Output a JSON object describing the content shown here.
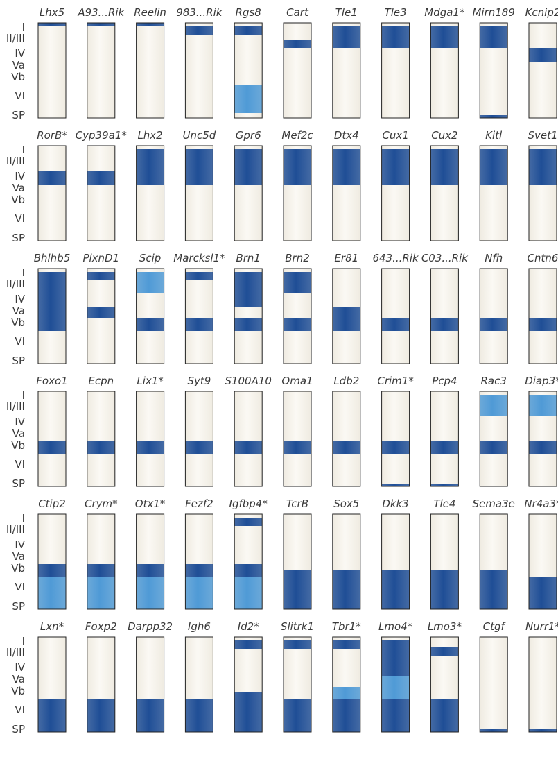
{
  "colors": {
    "column_fill": "#f7f4ec",
    "column_stroke": "#222222",
    "strong": "#1f4e96",
    "weak": "#4f9ad6",
    "text": "#3a3a3a"
  },
  "layer_labels": [
    "I",
    "II/III",
    "IV",
    "Va",
    "Vb",
    "VI",
    "SP"
  ],
  "rows": [
    {
      "genes": [
        {
          "name": "Lhx5",
          "bands": [
            {
              "from": "I",
              "to": "I",
              "level": "strong"
            }
          ]
        },
        {
          "name": "A93...Rik",
          "bands": [
            {
              "from": "I",
              "to": "I",
              "level": "strong"
            }
          ]
        },
        {
          "name": "Reelin",
          "bands": [
            {
              "from": "I",
              "to": "I",
              "level": "strong"
            }
          ]
        },
        {
          "name": "983...Rik",
          "bands": [
            {
              "from": "II/III",
              "to": "II/III",
              "level": "strong",
              "part": "upper"
            }
          ]
        },
        {
          "name": "Rgs8",
          "bands": [
            {
              "from": "II/III",
              "to": "II/III",
              "level": "strong",
              "part": "upper"
            },
            {
              "from": "VI",
              "to": "VI",
              "level": "weak"
            }
          ]
        },
        {
          "name": "Cart",
          "bands": [
            {
              "from": "II/III",
              "to": "II/III",
              "level": "strong",
              "part": "lower"
            }
          ]
        },
        {
          "name": "Tle1",
          "bands": [
            {
              "from": "II/III",
              "to": "II/III",
              "level": "strong"
            }
          ]
        },
        {
          "name": "Tle3",
          "bands": [
            {
              "from": "II/III",
              "to": "II/III",
              "level": "strong"
            }
          ]
        },
        {
          "name": "Mdga1*",
          "bands": [
            {
              "from": "II/III",
              "to": "II/III",
              "level": "strong"
            }
          ]
        },
        {
          "name": "Mirn189",
          "bands": [
            {
              "from": "II/III",
              "to": "II/III",
              "level": "strong"
            },
            {
              "from": "SP",
              "to": "SP",
              "level": "strong",
              "part": "bottom"
            }
          ]
        },
        {
          "name": "Kcnip2",
          "bands": [
            {
              "from": "IV",
              "to": "IV",
              "level": "strong"
            }
          ]
        }
      ]
    },
    {
      "genes": [
        {
          "name": "RorB*",
          "bands": [
            {
              "from": "IV",
              "to": "IV",
              "level": "strong"
            }
          ]
        },
        {
          "name": "Cyp39a1*",
          "bands": [
            {
              "from": "IV",
              "to": "IV",
              "level": "strong"
            }
          ]
        },
        {
          "name": "Lhx2",
          "bands": [
            {
              "from": "II/III",
              "to": "IV",
              "level": "strong"
            }
          ]
        },
        {
          "name": "Unc5d",
          "bands": [
            {
              "from": "II/III",
              "to": "IV",
              "level": "strong"
            }
          ]
        },
        {
          "name": "Gpr6",
          "bands": [
            {
              "from": "II/III",
              "to": "IV",
              "level": "strong"
            }
          ]
        },
        {
          "name": "Mef2c",
          "bands": [
            {
              "from": "II/III",
              "to": "IV",
              "level": "strong"
            }
          ]
        },
        {
          "name": "Dtx4",
          "bands": [
            {
              "from": "II/III",
              "to": "IV",
              "level": "strong"
            }
          ]
        },
        {
          "name": "Cux1",
          "bands": [
            {
              "from": "II/III",
              "to": "IV",
              "level": "strong"
            }
          ]
        },
        {
          "name": "Cux2",
          "bands": [
            {
              "from": "II/III",
              "to": "IV",
              "level": "strong"
            }
          ]
        },
        {
          "name": "Kitl",
          "bands": [
            {
              "from": "II/III",
              "to": "IV",
              "level": "strong"
            }
          ]
        },
        {
          "name": "Svet1",
          "bands": [
            {
              "from": "II/III",
              "to": "IV",
              "level": "strong"
            }
          ]
        }
      ]
    },
    {
      "genes": [
        {
          "name": "Bhlhb5",
          "bands": [
            {
              "from": "II/III",
              "to": "Vb",
              "level": "strong"
            }
          ]
        },
        {
          "name": "PlxnD1",
          "bands": [
            {
              "from": "II/III",
              "to": "II/III",
              "level": "strong",
              "part": "upper"
            },
            {
              "from": "Va",
              "to": "Va",
              "level": "strong"
            }
          ]
        },
        {
          "name": "Scip",
          "bands": [
            {
              "from": "II/III",
              "to": "II/III",
              "level": "weak"
            },
            {
              "from": "Vb",
              "to": "Vb",
              "level": "strong"
            }
          ]
        },
        {
          "name": "Marcksl1*",
          "bands": [
            {
              "from": "II/III",
              "to": "II/III",
              "level": "strong",
              "part": "upper"
            },
            {
              "from": "Vb",
              "to": "Vb",
              "level": "strong"
            }
          ]
        },
        {
          "name": "Brn1",
          "bands": [
            {
              "from": "II/III",
              "to": "IV",
              "level": "strong"
            },
            {
              "from": "Vb",
              "to": "Vb",
              "level": "strong"
            }
          ]
        },
        {
          "name": "Brn2",
          "bands": [
            {
              "from": "II/III",
              "to": "II/III",
              "level": "strong"
            },
            {
              "from": "Vb",
              "to": "Vb",
              "level": "strong"
            }
          ]
        },
        {
          "name": "Er81",
          "bands": [
            {
              "from": "Va",
              "to": "Vb",
              "level": "strong"
            }
          ]
        },
        {
          "name": "643...Rik",
          "bands": [
            {
              "from": "Vb",
              "to": "Vb",
              "level": "strong"
            }
          ]
        },
        {
          "name": "C03...Rik",
          "bands": [
            {
              "from": "Vb",
              "to": "Vb",
              "level": "strong"
            }
          ]
        },
        {
          "name": "Nfh",
          "bands": [
            {
              "from": "Vb",
              "to": "Vb",
              "level": "strong"
            }
          ]
        },
        {
          "name": "Cntn6",
          "bands": [
            {
              "from": "Vb",
              "to": "Vb",
              "level": "strong"
            }
          ]
        }
      ]
    },
    {
      "genes": [
        {
          "name": "Foxo1",
          "bands": [
            {
              "from": "Vb",
              "to": "Vb",
              "level": "strong"
            }
          ]
        },
        {
          "name": "Ecpn",
          "bands": [
            {
              "from": "Vb",
              "to": "Vb",
              "level": "strong"
            }
          ]
        },
        {
          "name": "Lix1*",
          "bands": [
            {
              "from": "Vb",
              "to": "Vb",
              "level": "strong"
            }
          ]
        },
        {
          "name": "Syt9",
          "bands": [
            {
              "from": "Vb",
              "to": "Vb",
              "level": "strong"
            }
          ]
        },
        {
          "name": "S100A10",
          "bands": [
            {
              "from": "Vb",
              "to": "Vb",
              "level": "strong"
            }
          ]
        },
        {
          "name": "Oma1",
          "bands": [
            {
              "from": "Vb",
              "to": "Vb",
              "level": "strong"
            }
          ]
        },
        {
          "name": "Ldb2",
          "bands": [
            {
              "from": "Vb",
              "to": "Vb",
              "level": "strong"
            }
          ]
        },
        {
          "name": "Crim1*",
          "bands": [
            {
              "from": "Vb",
              "to": "Vb",
              "level": "strong"
            },
            {
              "from": "SP",
              "to": "SP",
              "level": "strong",
              "part": "bottom"
            }
          ]
        },
        {
          "name": "Pcp4",
          "bands": [
            {
              "from": "Vb",
              "to": "Vb",
              "level": "strong"
            },
            {
              "from": "SP",
              "to": "SP",
              "level": "strong",
              "part": "bottom"
            }
          ]
        },
        {
          "name": "Rac3",
          "bands": [
            {
              "from": "II/III",
              "to": "II/III",
              "level": "weak"
            },
            {
              "from": "Vb",
              "to": "Vb",
              "level": "strong"
            }
          ]
        },
        {
          "name": "Diap3*",
          "bands": [
            {
              "from": "II/III",
              "to": "II/III",
              "level": "weak"
            },
            {
              "from": "Vb",
              "to": "Vb",
              "level": "strong"
            }
          ]
        }
      ]
    },
    {
      "genes": [
        {
          "name": "Ctip2",
          "bands": [
            {
              "from": "Vb",
              "to": "Vb",
              "level": "strong"
            },
            {
              "from": "VI",
              "to": "SP",
              "level": "weak"
            }
          ]
        },
        {
          "name": "Crym*",
          "bands": [
            {
              "from": "Vb",
              "to": "Vb",
              "level": "strong"
            },
            {
              "from": "VI",
              "to": "SP",
              "level": "weak"
            }
          ]
        },
        {
          "name": "Otx1*",
          "bands": [
            {
              "from": "Vb",
              "to": "Vb",
              "level": "strong"
            },
            {
              "from": "VI",
              "to": "SP",
              "level": "weak"
            }
          ]
        },
        {
          "name": "Fezf2",
          "bands": [
            {
              "from": "Vb",
              "to": "Vb",
              "level": "strong"
            },
            {
              "from": "VI",
              "to": "SP",
              "level": "weak"
            }
          ]
        },
        {
          "name": "Igfbp4*",
          "bands": [
            {
              "from": "II/III",
              "to": "II/III",
              "level": "strong",
              "part": "upper"
            },
            {
              "from": "Vb",
              "to": "Vb",
              "level": "strong"
            },
            {
              "from": "VI",
              "to": "SP",
              "level": "weak"
            }
          ]
        },
        {
          "name": "TcrB",
          "bands": [
            {
              "from": "VI",
              "to": "SP",
              "level": "strong",
              "part": "vb-lower"
            }
          ]
        },
        {
          "name": "Sox5",
          "bands": [
            {
              "from": "VI",
              "to": "SP",
              "level": "strong",
              "part": "vb-lower"
            }
          ]
        },
        {
          "name": "Dkk3",
          "bands": [
            {
              "from": "VI",
              "to": "SP",
              "level": "strong",
              "part": "vb-lower"
            }
          ]
        },
        {
          "name": "Tle4",
          "bands": [
            {
              "from": "VI",
              "to": "SP",
              "level": "strong",
              "part": "vb-lower"
            }
          ]
        },
        {
          "name": "Sema3e",
          "bands": [
            {
              "from": "VI",
              "to": "SP",
              "level": "strong",
              "part": "vb-lower"
            }
          ]
        },
        {
          "name": "Nr4a3*",
          "bands": [
            {
              "from": "VI",
              "to": "SP",
              "level": "strong"
            }
          ]
        }
      ]
    },
    {
      "genes": [
        {
          "name": "Lxn*",
          "bands": [
            {
              "from": "VI",
              "to": "SP",
              "level": "strong"
            }
          ]
        },
        {
          "name": "Foxp2",
          "bands": [
            {
              "from": "VI",
              "to": "SP",
              "level": "strong"
            }
          ]
        },
        {
          "name": "Darpp32",
          "bands": [
            {
              "from": "VI",
              "to": "SP",
              "level": "strong"
            }
          ]
        },
        {
          "name": "Igh6",
          "bands": [
            {
              "from": "VI",
              "to": "SP",
              "level": "strong"
            }
          ]
        },
        {
          "name": "Id2*",
          "bands": [
            {
              "from": "II/III",
              "to": "II/III",
              "level": "strong",
              "part": "upper"
            },
            {
              "from": "Vb",
              "to": "SP",
              "level": "strong",
              "part": "vb-lower"
            }
          ]
        },
        {
          "name": "Slitrk1",
          "bands": [
            {
              "from": "II/III",
              "to": "II/III",
              "level": "strong",
              "part": "upper"
            },
            {
              "from": "VI",
              "to": "SP",
              "level": "strong"
            }
          ]
        },
        {
          "name": "Tbr1*",
          "bands": [
            {
              "from": "II/III",
              "to": "II/III",
              "level": "strong",
              "part": "upper"
            },
            {
              "from": "Vb",
              "to": "Vb",
              "level": "weak"
            },
            {
              "from": "VI",
              "to": "SP",
              "level": "strong"
            }
          ]
        },
        {
          "name": "Lmo4*",
          "bands": [
            {
              "from": "II/III",
              "to": "IV",
              "level": "strong"
            },
            {
              "from": "Va",
              "to": "Vb",
              "level": "weak"
            },
            {
              "from": "VI",
              "to": "SP",
              "level": "strong"
            }
          ]
        },
        {
          "name": "Lmo3*",
          "bands": [
            {
              "from": "II/III",
              "to": "II/III",
              "level": "strong",
              "part": "middle"
            },
            {
              "from": "VI",
              "to": "SP",
              "level": "strong"
            }
          ]
        },
        {
          "name": "Ctgf",
          "bands": [
            {
              "from": "SP",
              "to": "SP",
              "level": "strong",
              "part": "bottom"
            }
          ]
        },
        {
          "name": "Nurr1*",
          "bands": [
            {
              "from": "SP",
              "to": "SP",
              "level": "strong",
              "part": "bottom"
            }
          ]
        }
      ]
    }
  ]
}
